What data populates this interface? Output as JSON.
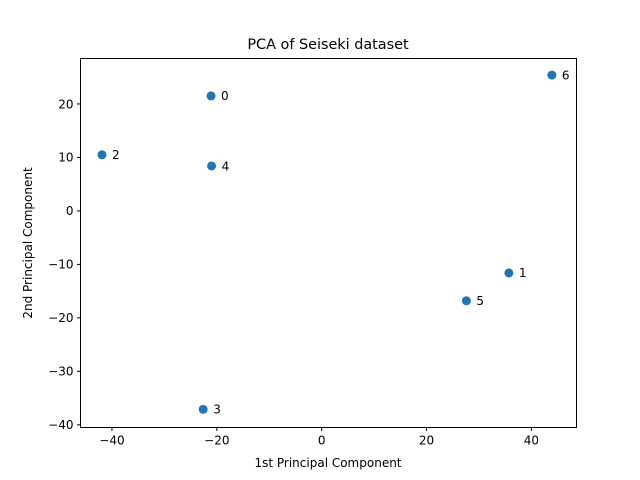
{
  "chart_data": {
    "type": "scatter",
    "title": "PCA of Seiseki dataset",
    "xlabel": "1st Principal Component",
    "ylabel": "2nd Principal Component",
    "xlim": [
      -46,
      48.6
    ],
    "ylim": [
      -40.5,
      28.5
    ],
    "xticks": [
      -40,
      -20,
      0,
      20,
      40
    ],
    "yticks": [
      -40,
      -30,
      -20,
      -10,
      0,
      10,
      20
    ],
    "grid": false,
    "marker_color": "#1f77b4",
    "points": [
      {
        "label": "0",
        "x": -21.1,
        "y": 21.5
      },
      {
        "label": "1",
        "x": 35.7,
        "y": -11.6
      },
      {
        "label": "2",
        "x": -41.9,
        "y": 10.5
      },
      {
        "label": "3",
        "x": -22.6,
        "y": -37.1
      },
      {
        "label": "4",
        "x": -21.0,
        "y": 8.4
      },
      {
        "label": "5",
        "x": 27.6,
        "y": -16.8
      },
      {
        "label": "6",
        "x": 43.9,
        "y": 25.4
      }
    ]
  }
}
